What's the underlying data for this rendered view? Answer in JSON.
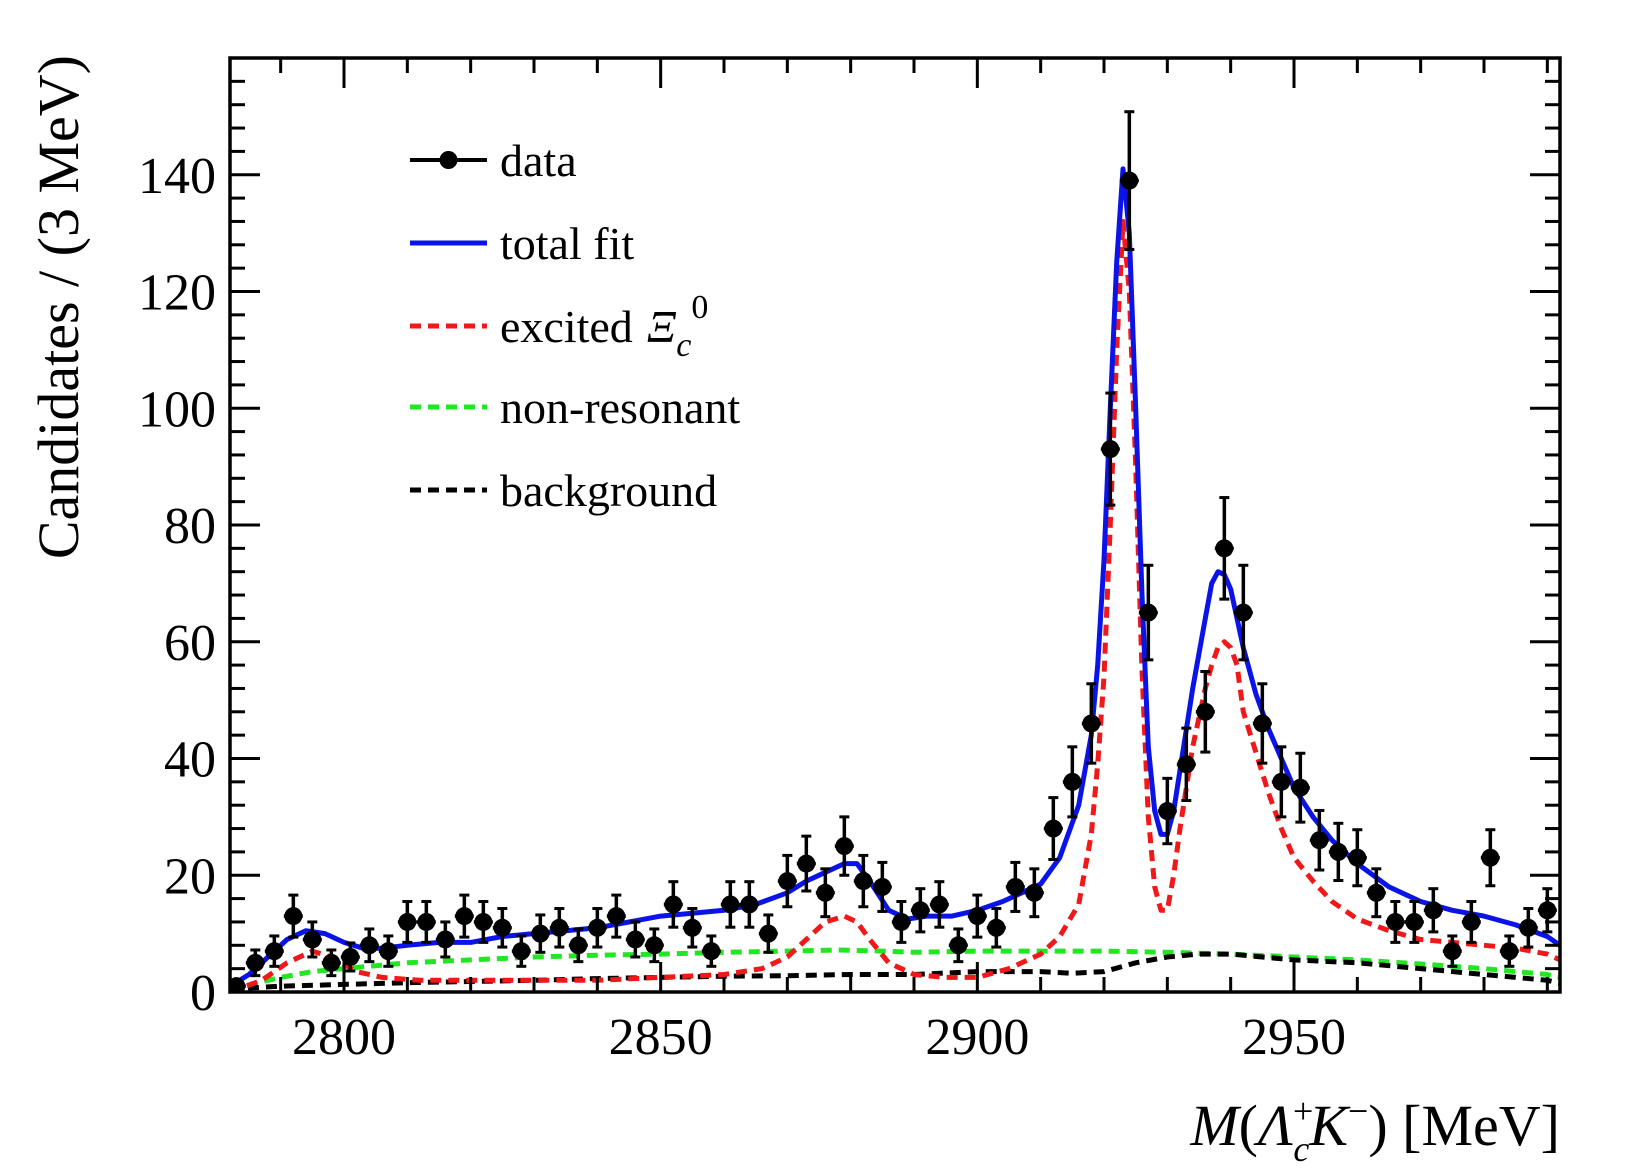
{
  "chart_data": {
    "type": "line",
    "title": "",
    "xlabel": "M(Λ_c^+ K^−) [MeV]",
    "ylabel": "Candidates / (3 MeV)",
    "xlim": [
      2782,
      2992
    ],
    "ylim": [
      0,
      160
    ],
    "xticks": [
      2800,
      2850,
      2900,
      2950
    ],
    "yticks": [
      0,
      20,
      40,
      60,
      80,
      100,
      120,
      140
    ],
    "legend_position": "top-left",
    "legend": [
      {
        "key": "data",
        "label": "data",
        "style": "marker",
        "color": "#000000"
      },
      {
        "key": "total",
        "label": "total fit",
        "style": "solid",
        "color": "#0a14e8"
      },
      {
        "key": "excited",
        "label": "excited",
        "label_symbol": "Ξ",
        "label_sub": "c",
        "label_sup": "0",
        "style": "dashed",
        "color": "#f01818"
      },
      {
        "key": "nonres",
        "label": "non-resonant",
        "style": "dashed",
        "color": "#22e622"
      },
      {
        "key": "bkg",
        "label": "background",
        "style": "dashed",
        "color": "#000000"
      }
    ],
    "data_points": {
      "x": [
        2783,
        2786,
        2789,
        2792,
        2795,
        2798,
        2801,
        2804,
        2807,
        2810,
        2813,
        2816,
        2819,
        2822,
        2825,
        2828,
        2831,
        2834,
        2837,
        2840,
        2843,
        2846,
        2849,
        2852,
        2855,
        2858,
        2861,
        2864,
        2867,
        2870,
        2873,
        2876,
        2879,
        2882,
        2885,
        2888,
        2891,
        2894,
        2897,
        2900,
        2903,
        2906,
        2909,
        2912,
        2915,
        2918,
        2921,
        2924,
        2927,
        2930,
        2933,
        2936,
        2939,
        2942,
        2945,
        2948,
        2951,
        2954,
        2957,
        2960,
        2963,
        2966,
        2969,
        2972,
        2975,
        2978,
        2981,
        2984,
        2987,
        2990
      ],
      "y": [
        1,
        5,
        7,
        13,
        9,
        5,
        6,
        8,
        7,
        12,
        12,
        9,
        13,
        12,
        11,
        7,
        10,
        11,
        8,
        11,
        13,
        9,
        8,
        15,
        11,
        7,
        15,
        15,
        10,
        19,
        22,
        17,
        25,
        19,
        18,
        12,
        14,
        15,
        8,
        13,
        11,
        18,
        17,
        28,
        36,
        46,
        93,
        139,
        65,
        31,
        39,
        48,
        76,
        65,
        46,
        36,
        35,
        26,
        24,
        23,
        17,
        12,
        12,
        14,
        7,
        12,
        23,
        7,
        11,
        14
      ],
      "yerr": [
        1,
        2.2,
        2.6,
        3.6,
        3,
        2.2,
        2.4,
        2.8,
        2.6,
        3.5,
        3.5,
        3,
        3.6,
        3.5,
        3.3,
        2.6,
        3.2,
        3.3,
        2.8,
        3.3,
        3.6,
        3,
        2.8,
        3.9,
        3.3,
        2.6,
        3.9,
        3.9,
        3.2,
        4.4,
        4.7,
        4.1,
        5,
        4.4,
        4.2,
        3.5,
        3.7,
        3.9,
        2.8,
        3.6,
        3.3,
        4.2,
        4.1,
        5.3,
        6,
        6.8,
        9.6,
        11.8,
        8.1,
        5.6,
        6.2,
        6.9,
        8.7,
        8.1,
        6.8,
        6,
        5.9,
        5.1,
        4.9,
        4.8,
        4.1,
        3.5,
        3.5,
        3.7,
        2.6,
        3.5,
        4.8,
        2.6,
        3.3,
        3.7
      ]
    },
    "series": [
      {
        "name": "total fit",
        "key": "total",
        "x": [
          2782,
          2785,
          2788,
          2791,
          2794,
          2797,
          2800,
          2803,
          2806,
          2810,
          2815,
          2820,
          2825,
          2830,
          2835,
          2840,
          2845,
          2850,
          2855,
          2860,
          2865,
          2870,
          2873,
          2876,
          2879,
          2881,
          2883,
          2886,
          2889,
          2892,
          2896,
          2900,
          2904,
          2907,
          2910,
          2913,
          2916,
          2918,
          2919,
          2920,
          2921,
          2922,
          2923,
          2924,
          2925,
          2926,
          2927,
          2928,
          2929,
          2930,
          2931,
          2932,
          2934,
          2936,
          2937,
          2938,
          2939,
          2940,
          2941,
          2942,
          2944,
          2946,
          2948,
          2950,
          2953,
          2956,
          2960,
          2965,
          2970,
          2975,
          2980,
          2985,
          2990,
          2992
        ],
        "y": [
          1,
          3,
          6,
          9,
          10.5,
          10,
          8.5,
          7.5,
          7.5,
          8,
          8.5,
          8.5,
          9.5,
          10,
          10.5,
          11,
          12,
          13,
          13.5,
          14,
          15,
          17,
          19,
          20.5,
          22,
          22,
          19,
          14,
          12.5,
          13,
          13,
          14,
          15.5,
          17,
          18.5,
          23,
          32,
          44,
          56,
          74,
          100,
          125,
          141,
          130,
          100,
          68,
          42,
          31,
          27,
          27,
          31,
          38,
          52,
          64,
          70,
          72,
          71.5,
          69,
          64,
          59,
          51,
          45,
          40,
          35,
          30,
          26,
          22,
          18,
          15.5,
          14,
          13,
          11.5,
          9.5,
          8
        ]
      },
      {
        "name": "excited Ξc0",
        "key": "excited",
        "x": [
          2782,
          2787,
          2791,
          2795,
          2798,
          2802,
          2806,
          2812,
          2820,
          2830,
          2840,
          2850,
          2860,
          2866,
          2870,
          2873,
          2876,
          2879,
          2881,
          2883,
          2886,
          2890,
          2895,
          2900,
          2905,
          2910,
          2913,
          2916,
          2918,
          2919,
          2920,
          2921,
          2922,
          2923,
          2924,
          2925,
          2926,
          2927,
          2928,
          2929,
          2930,
          2931,
          2932,
          2934,
          2936,
          2937,
          2938,
          2939,
          2940,
          2941,
          2942,
          2944,
          2946,
          2948,
          2950,
          2953,
          2956,
          2960,
          2965,
          2970,
          2975,
          2980,
          2985,
          2990,
          2992
        ],
        "y": [
          0,
          2,
          5,
          7,
          6,
          3.5,
          2.5,
          2,
          2,
          2,
          2,
          2.5,
          3,
          4,
          6,
          9,
          12,
          13,
          12,
          9,
          5,
          3,
          2.5,
          2.5,
          4,
          6.5,
          9.5,
          15,
          27,
          39,
          54,
          80,
          110,
          132,
          120,
          90,
          55,
          30,
          18,
          14,
          14,
          20,
          28,
          42,
          52,
          56,
          59,
          60,
          59,
          56,
          48,
          41,
          34,
          28,
          23,
          19,
          15.5,
          12.5,
          10.5,
          9,
          8.5,
          8,
          7.5,
          6.5,
          5.5
        ]
      },
      {
        "name": "non-resonant",
        "key": "nonres",
        "x": [
          2782,
          2786,
          2790,
          2795,
          2800,
          2805,
          2810,
          2820,
          2830,
          2840,
          2850,
          2860,
          2870,
          2878,
          2885,
          2890,
          2900,
          2910,
          2920,
          2930,
          2940,
          2950,
          2960,
          2970,
          2980,
          2990,
          2992
        ],
        "y": [
          0,
          1.5,
          2.5,
          3.5,
          4,
          4.5,
          5,
          5.5,
          6,
          6.3,
          6.5,
          6.8,
          7,
          7.2,
          7,
          6.8,
          7,
          7,
          7,
          6.8,
          6.5,
          6,
          5.5,
          4.8,
          4,
          3,
          2.5
        ]
      },
      {
        "name": "background",
        "key": "bkg",
        "x": [
          2782,
          2790,
          2800,
          2810,
          2820,
          2830,
          2840,
          2850,
          2860,
          2870,
          2880,
          2890,
          2900,
          2910,
          2915,
          2920,
          2925,
          2930,
          2935,
          2940,
          2945,
          2950,
          2960,
          2970,
          2980,
          2990,
          2992
        ],
        "y": [
          0.5,
          1,
          1.3,
          1.6,
          1.8,
          2,
          2.3,
          2.5,
          2.7,
          2.8,
          3,
          3,
          3.5,
          3.5,
          3.2,
          3.5,
          5,
          6,
          6.5,
          6.5,
          6,
          5.5,
          5,
          4,
          3,
          2,
          1.5
        ]
      }
    ]
  }
}
